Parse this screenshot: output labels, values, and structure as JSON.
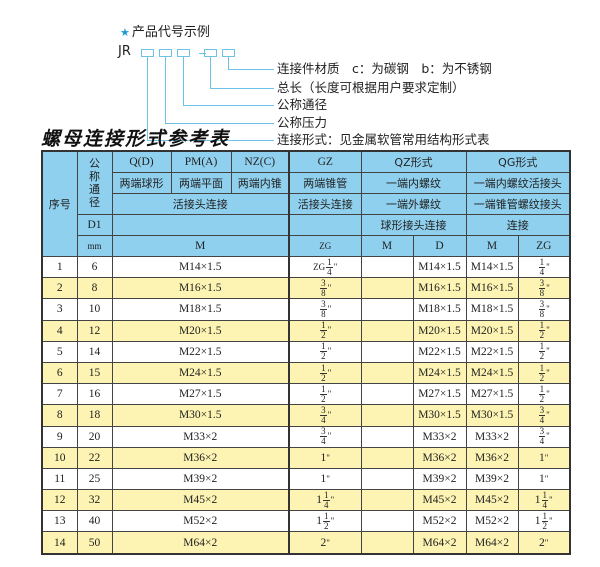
{
  "legend": {
    "title": "产品代号示例",
    "code_prefix": "JR",
    "labels": [
      "连接件材质　c：为碳钢　b：为不锈钢",
      "总长（长度可根据用户要求定制）",
      "公称通径",
      "公称压力",
      "连接形式：见金属软管常用结构形式表"
    ]
  },
  "table_title": "螺母连接形式参考表",
  "header": {
    "seq": "序号",
    "dn": "公称通径",
    "qd": "Q(D)",
    "pma": "PM(A)",
    "nzc": "NZ(C)",
    "gz": "GZ",
    "qz": "QZ形式",
    "qg": "QG形式",
    "r2": [
      "两端球形",
      "两端平面",
      "两端内锥",
      "两端锥管",
      "一端内螺纹",
      "一端内螺纹活接头"
    ],
    "r3": [
      "活接头连接",
      "活接头连接",
      "一端外螺纹",
      "一端锥管螺纹接头"
    ],
    "d1": "D1",
    "qz_conn": "球形接头连接",
    "qg_conn": "连接",
    "mm": "mm",
    "m": "M",
    "zg": "ZG",
    "qz_m": "M",
    "qz_d": "D",
    "qg_m": "M",
    "qg_zg": "ZG"
  },
  "rows": [
    {
      "no": "1",
      "d1": "6",
      "m": "M14×1.5",
      "zg": {
        "pre": "ZG",
        "int": "",
        "num": "1",
        "den": "4",
        "unit": "\""
      },
      "qz_m": "",
      "qz_d": "M14×1.5",
      "qg_m": "M14×1.5",
      "qg_zg": {
        "pre": "",
        "int": "",
        "num": "1",
        "den": "4",
        "unit": "\""
      }
    },
    {
      "no": "2",
      "d1": "8",
      "m": "M16×1.5",
      "zg": {
        "pre": "",
        "int": "",
        "num": "3",
        "den": "8",
        "unit": "\""
      },
      "qz_m": "",
      "qz_d": "M16×1.5",
      "qg_m": "M16×1.5",
      "qg_zg": {
        "pre": "",
        "int": "",
        "num": "3",
        "den": "8",
        "unit": "\""
      }
    },
    {
      "no": "3",
      "d1": "10",
      "m": "M18×1.5",
      "zg": {
        "pre": "",
        "int": "",
        "num": "3",
        "den": "8",
        "unit": "\""
      },
      "qz_m": "",
      "qz_d": "M18×1.5",
      "qg_m": "M18×1.5",
      "qg_zg": {
        "pre": "",
        "int": "",
        "num": "3",
        "den": "8",
        "unit": "\""
      }
    },
    {
      "no": "4",
      "d1": "12",
      "m": "M20×1.5",
      "zg": {
        "pre": "",
        "int": "",
        "num": "1",
        "den": "2",
        "unit": "\""
      },
      "qz_m": "",
      "qz_d": "M20×1.5",
      "qg_m": "M20×1.5",
      "qg_zg": {
        "pre": "",
        "int": "",
        "num": "1",
        "den": "2",
        "unit": "\""
      }
    },
    {
      "no": "5",
      "d1": "14",
      "m": "M22×1.5",
      "zg": {
        "pre": "",
        "int": "",
        "num": "1",
        "den": "2",
        "unit": "\""
      },
      "qz_m": "",
      "qz_d": "M22×1.5",
      "qg_m": "M22×1.5",
      "qg_zg": {
        "pre": "",
        "int": "",
        "num": "1",
        "den": "2",
        "unit": "\""
      }
    },
    {
      "no": "6",
      "d1": "15",
      "m": "M24×1.5",
      "zg": {
        "pre": "",
        "int": "",
        "num": "1",
        "den": "2",
        "unit": "\""
      },
      "qz_m": "",
      "qz_d": "M24×1.5",
      "qg_m": "M24×1.5",
      "qg_zg": {
        "pre": "",
        "int": "",
        "num": "1",
        "den": "2",
        "unit": "\""
      }
    },
    {
      "no": "7",
      "d1": "16",
      "m": "M27×1.5",
      "zg": {
        "pre": "",
        "int": "",
        "num": "1",
        "den": "2",
        "unit": "\""
      },
      "qz_m": "",
      "qz_d": "M27×1.5",
      "qg_m": "M27×1.5",
      "qg_zg": {
        "pre": "",
        "int": "",
        "num": "1",
        "den": "2",
        "unit": "\""
      }
    },
    {
      "no": "8",
      "d1": "18",
      "m": "M30×1.5",
      "zg": {
        "pre": "",
        "int": "",
        "num": "3",
        "den": "4",
        "unit": "\""
      },
      "qz_m": "",
      "qz_d": "M30×1.5",
      "qg_m": "M30×1.5",
      "qg_zg": {
        "pre": "",
        "int": "",
        "num": "3",
        "den": "4",
        "unit": "\""
      }
    },
    {
      "no": "9",
      "d1": "20",
      "m": "M33×2",
      "zg": {
        "pre": "",
        "int": "",
        "num": "3",
        "den": "4",
        "unit": "\""
      },
      "qz_m": "",
      "qz_d": "M33×2",
      "qg_m": "M33×2",
      "qg_zg": {
        "pre": "",
        "int": "",
        "num": "3",
        "den": "4",
        "unit": "\""
      }
    },
    {
      "no": "10",
      "d1": "22",
      "m": "M36×2",
      "zg": {
        "pre": "",
        "int": "1",
        "num": "",
        "den": "",
        "unit": "\""
      },
      "qz_m": "",
      "qz_d": "M36×2",
      "qg_m": "M36×2",
      "qg_zg": {
        "pre": "",
        "int": "1",
        "num": "",
        "den": "",
        "unit": "\""
      }
    },
    {
      "no": "11",
      "d1": "25",
      "m": "M39×2",
      "zg": {
        "pre": "",
        "int": "1",
        "num": "",
        "den": "",
        "unit": "\""
      },
      "qz_m": "",
      "qz_d": "M39×2",
      "qg_m": "M39×2",
      "qg_zg": {
        "pre": "",
        "int": "1",
        "num": "",
        "den": "",
        "unit": "\""
      }
    },
    {
      "no": "12",
      "d1": "32",
      "m": "M45×2",
      "zg": {
        "pre": "",
        "int": "1",
        "num": "1",
        "den": "4",
        "unit": "\""
      },
      "qz_m": "",
      "qz_d": "M45×2",
      "qg_m": "M45×2",
      "qg_zg": {
        "pre": "",
        "int": "1",
        "num": "1",
        "den": "4",
        "unit": "\""
      }
    },
    {
      "no": "13",
      "d1": "40",
      "m": "M52×2",
      "zg": {
        "pre": "",
        "int": "1",
        "num": "1",
        "den": "2",
        "unit": "\""
      },
      "qz_m": "",
      "qz_d": "M52×2",
      "qg_m": "M52×2",
      "qg_zg": {
        "pre": "",
        "int": "1",
        "num": "1",
        "den": "2",
        "unit": "\""
      }
    },
    {
      "no": "14",
      "d1": "50",
      "m": "M64×2",
      "zg": {
        "pre": "",
        "int": "2",
        "num": "",
        "den": "",
        "unit": "\""
      },
      "qz_m": "",
      "qz_d": "M64×2",
      "qg_m": "M64×2",
      "qg_zg": {
        "pre": "",
        "int": "2",
        "num": "",
        "den": "",
        "unit": "\""
      }
    }
  ],
  "colors": {
    "header_bg": "#8fd0ef",
    "stripe": "#fdf4b3",
    "accent": "#1a9ad6"
  }
}
